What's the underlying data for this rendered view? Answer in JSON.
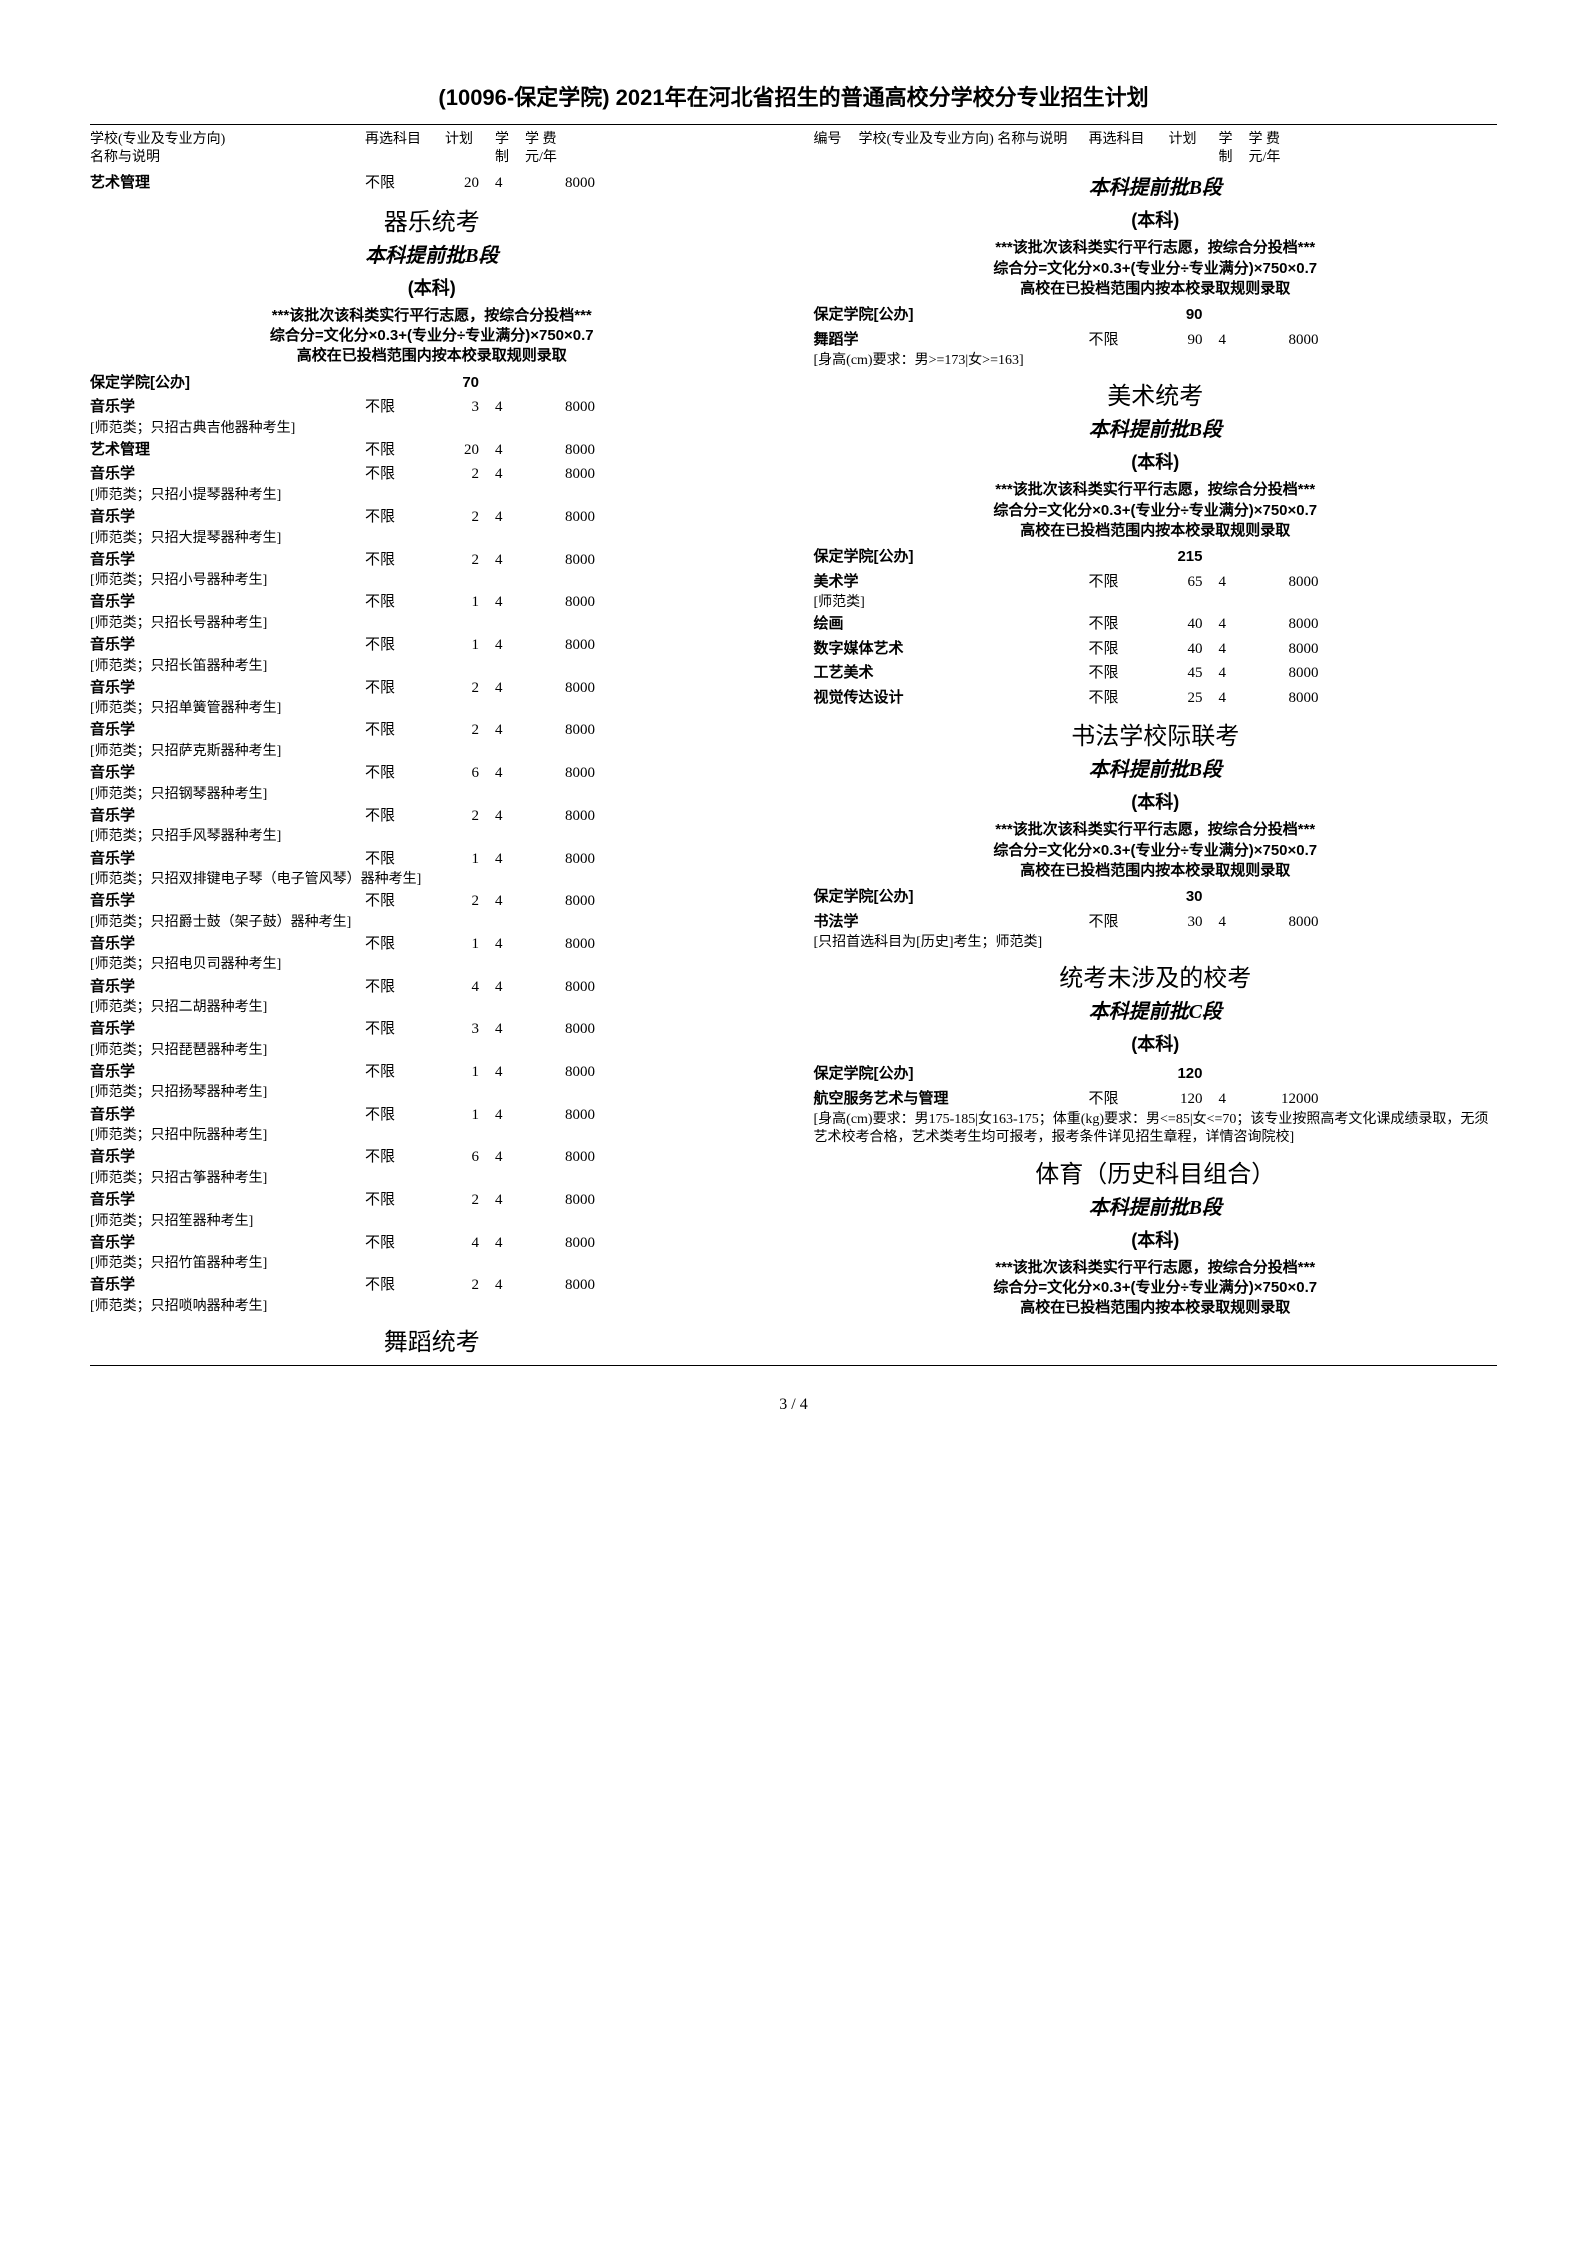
{
  "page_title": "(10096-保定学院) 2021年在河北省招生的普通高校分学校分专业招生计划",
  "page_number": "3 / 4",
  "header_left": {
    "name": "学校(专业及专业方向)\n名称与说明",
    "subj": "再选科目",
    "plan": "计划",
    "sys": "学\n制",
    "fee": "学 费\n元/年"
  },
  "header_right": {
    "code": "编号",
    "name": "学校(专业及专业方向)\n名称与说明",
    "subj": "再选科目",
    "plan": "计划",
    "sys": "学\n制",
    "fee": "学 费\n元/年"
  },
  "note_text": "***该批次该科类实行平行志愿，按综合分投档***\n综合分=文化分×0.3+(专业分÷专业满分)×750×0.7\n高校在已投档范围内按本校录取规则录取",
  "left": {
    "first_major": {
      "name": "艺术管理",
      "subj": "不限",
      "plan": "20",
      "sys": "4",
      "fee": "8000"
    },
    "sec1_title": "器乐统考",
    "sec1_sub": "本科提前批B段",
    "sec1_subsub": "(本科)",
    "school1": {
      "name": "保定学院[公办]",
      "plan": "70"
    },
    "majors1": [
      {
        "name": "音乐学",
        "subj": "不限",
        "plan": "3",
        "sys": "4",
        "fee": "8000",
        "note": "[师范类；只招古典吉他器种考生]"
      },
      {
        "name": "艺术管理",
        "subj": "不限",
        "plan": "20",
        "sys": "4",
        "fee": "8000"
      },
      {
        "name": "音乐学",
        "subj": "不限",
        "plan": "2",
        "sys": "4",
        "fee": "8000",
        "note": "[师范类；只招小提琴器种考生]"
      },
      {
        "name": "音乐学",
        "subj": "不限",
        "plan": "2",
        "sys": "4",
        "fee": "8000",
        "note": "[师范类；只招大提琴器种考生]"
      },
      {
        "name": "音乐学",
        "subj": "不限",
        "plan": "2",
        "sys": "4",
        "fee": "8000",
        "note": "[师范类；只招小号器种考生]"
      },
      {
        "name": "音乐学",
        "subj": "不限",
        "plan": "1",
        "sys": "4",
        "fee": "8000",
        "note": "[师范类；只招长号器种考生]"
      },
      {
        "name": "音乐学",
        "subj": "不限",
        "plan": "1",
        "sys": "4",
        "fee": "8000",
        "note": "[师范类；只招长笛器种考生]"
      },
      {
        "name": "音乐学",
        "subj": "不限",
        "plan": "2",
        "sys": "4",
        "fee": "8000",
        "note": "[师范类；只招单簧管器种考生]"
      },
      {
        "name": "音乐学",
        "subj": "不限",
        "plan": "2",
        "sys": "4",
        "fee": "8000",
        "note": "[师范类；只招萨克斯器种考生]"
      },
      {
        "name": "音乐学",
        "subj": "不限",
        "plan": "6",
        "sys": "4",
        "fee": "8000",
        "note": "[师范类；只招钢琴器种考生]"
      },
      {
        "name": "音乐学",
        "subj": "不限",
        "plan": "2",
        "sys": "4",
        "fee": "8000",
        "note": "[师范类；只招手风琴器种考生]"
      },
      {
        "name": "音乐学",
        "subj": "不限",
        "plan": "1",
        "sys": "4",
        "fee": "8000",
        "note": "[师范类；只招双排键电子琴（电子管风琴）器种考生]"
      },
      {
        "name": "音乐学",
        "subj": "不限",
        "plan": "2",
        "sys": "4",
        "fee": "8000",
        "note": "[师范类；只招爵士鼓（架子鼓）器种考生]"
      },
      {
        "name": "音乐学",
        "subj": "不限",
        "plan": "1",
        "sys": "4",
        "fee": "8000",
        "note": "[师范类；只招电贝司器种考生]"
      },
      {
        "name": "音乐学",
        "subj": "不限",
        "plan": "4",
        "sys": "4",
        "fee": "8000",
        "note": "[师范类；只招二胡器种考生]"
      },
      {
        "name": "音乐学",
        "subj": "不限",
        "plan": "3",
        "sys": "4",
        "fee": "8000",
        "note": "[师范类；只招琵琶器种考生]"
      },
      {
        "name": "音乐学",
        "subj": "不限",
        "plan": "1",
        "sys": "4",
        "fee": "8000",
        "note": "[师范类；只招扬琴器种考生]"
      },
      {
        "name": "音乐学",
        "subj": "不限",
        "plan": "1",
        "sys": "4",
        "fee": "8000",
        "note": "[师范类；只招中阮器种考生]"
      },
      {
        "name": "音乐学",
        "subj": "不限",
        "plan": "6",
        "sys": "4",
        "fee": "8000",
        "note": "[师范类；只招古筝器种考生]"
      },
      {
        "name": "音乐学",
        "subj": "不限",
        "plan": "2",
        "sys": "4",
        "fee": "8000",
        "note": "[师范类；只招笙器种考生]"
      },
      {
        "name": "音乐学",
        "subj": "不限",
        "plan": "4",
        "sys": "4",
        "fee": "8000",
        "note": "[师范类；只招竹笛器种考生]"
      },
      {
        "name": "音乐学",
        "subj": "不限",
        "plan": "2",
        "sys": "4",
        "fee": "8000",
        "note": "[师范类；只招唢呐器种考生]"
      }
    ],
    "sec2_title": "舞蹈统考"
  },
  "right": {
    "sec1_sub": "本科提前批B段",
    "sec1_subsub": "(本科)",
    "school1": {
      "name": "保定学院[公办]",
      "plan": "90"
    },
    "majors1": [
      {
        "name": "舞蹈学",
        "subj": "不限",
        "plan": "90",
        "sys": "4",
        "fee": "8000",
        "note": "[身高(cm)要求：男>=173|女>=163]"
      }
    ],
    "sec2_title": "美术统考",
    "sec2_sub": "本科提前批B段",
    "sec2_subsub": "(本科)",
    "school2": {
      "name": "保定学院[公办]",
      "plan": "215"
    },
    "majors2": [
      {
        "name": "美术学",
        "subj": "不限",
        "plan": "65",
        "sys": "4",
        "fee": "8000",
        "note": "[师范类]"
      },
      {
        "name": "绘画",
        "subj": "不限",
        "plan": "40",
        "sys": "4",
        "fee": "8000"
      },
      {
        "name": "数字媒体艺术",
        "subj": "不限",
        "plan": "40",
        "sys": "4",
        "fee": "8000"
      },
      {
        "name": "工艺美术",
        "subj": "不限",
        "plan": "45",
        "sys": "4",
        "fee": "8000"
      },
      {
        "name": "视觉传达设计",
        "subj": "不限",
        "plan": "25",
        "sys": "4",
        "fee": "8000"
      }
    ],
    "sec3_title": "书法学校际联考",
    "sec3_sub": "本科提前批B段",
    "sec3_subsub": "(本科)",
    "school3": {
      "name": "保定学院[公办]",
      "plan": "30"
    },
    "majors3": [
      {
        "name": "书法学",
        "subj": "不限",
        "plan": "30",
        "sys": "4",
        "fee": "8000",
        "note": "[只招首选科目为[历史]考生；师范类]"
      }
    ],
    "sec4_title": "统考未涉及的校考",
    "sec4_sub": "本科提前批C段",
    "sec4_subsub": "(本科)",
    "school4": {
      "name": "保定学院[公办]",
      "plan": "120"
    },
    "majors4": [
      {
        "name": "航空服务艺术与管理",
        "subj": "不限",
        "plan": "120",
        "sys": "4",
        "fee": "12000",
        "note": "[身高(cm)要求：男175-185|女163-175；体重(kg)要求：男<=85|女<=70；该专业按照高考文化课成绩录取，无须艺术校考合格，艺术类考生均可报考，报考条件详见招生章程，详情咨询院校]"
      }
    ],
    "sec5_title": "体育（历史科目组合）",
    "sec5_sub": "本科提前批B段",
    "sec5_subsub": "(本科)"
  }
}
